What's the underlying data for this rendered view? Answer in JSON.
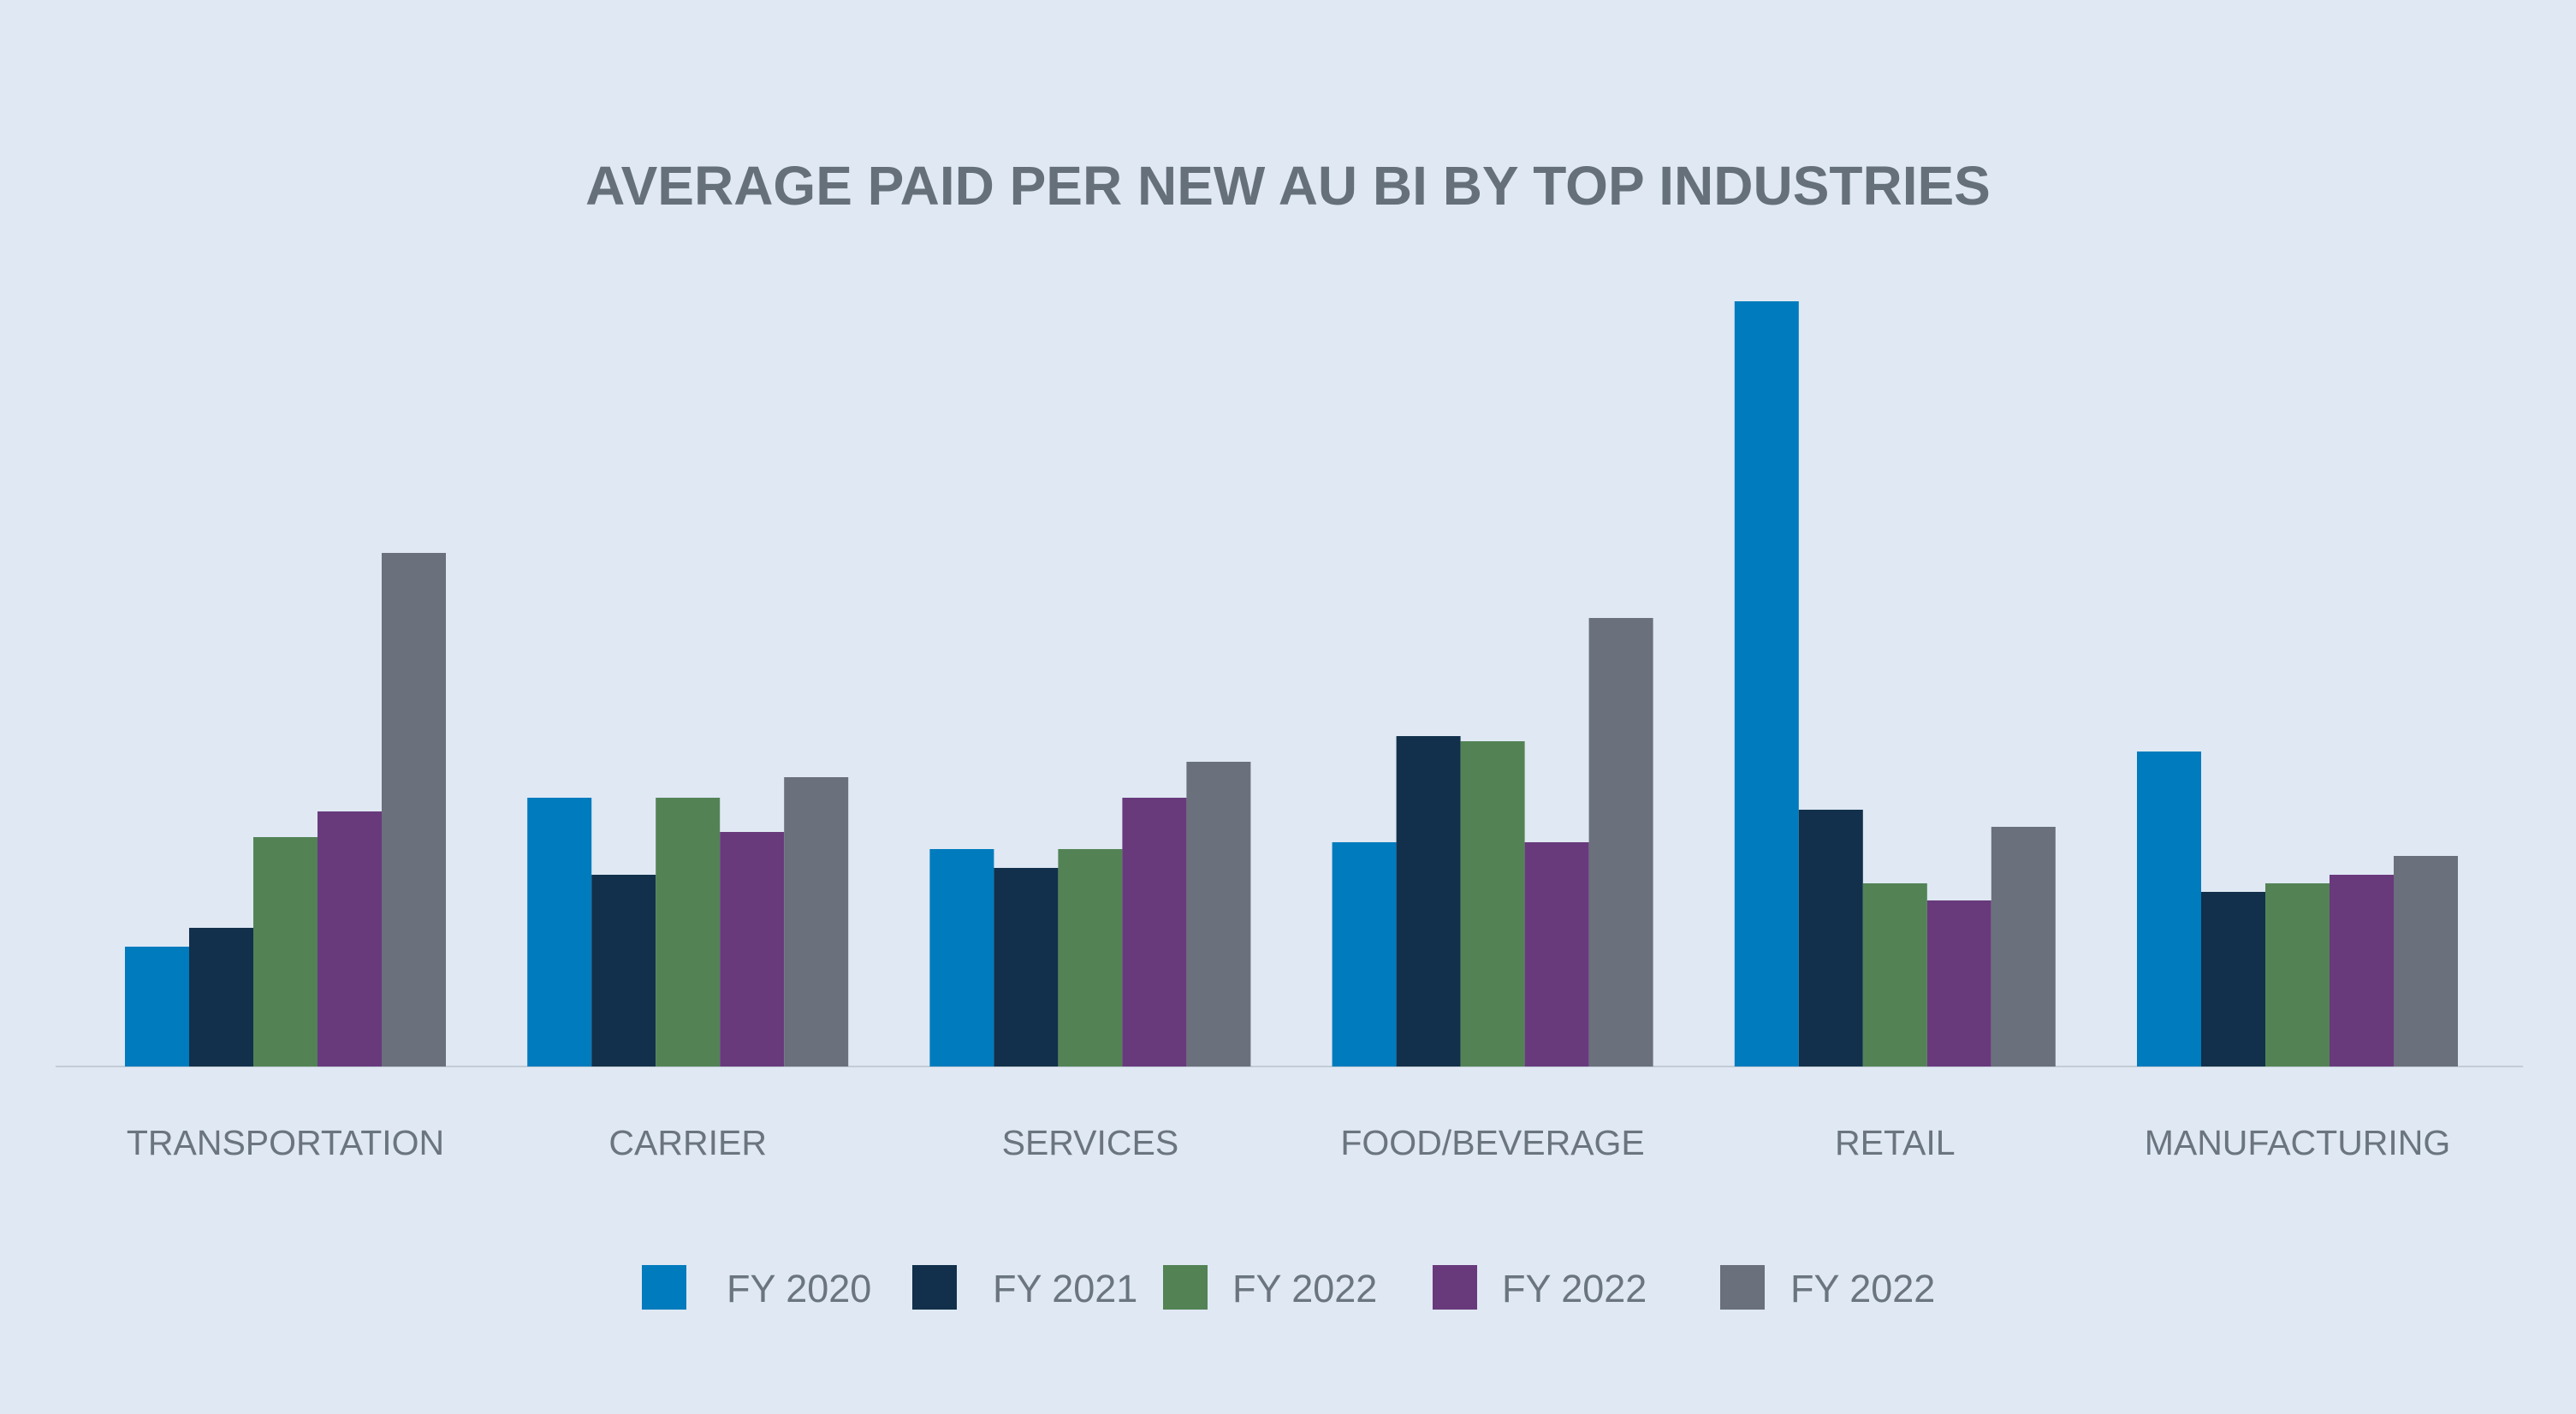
{
  "chart_data": {
    "type": "bar",
    "title": "AVERAGE PAID PER NEW AU BI BY TOP INDUSTRIES",
    "xlabel": "",
    "ylabel": "",
    "categories": [
      "TRANSPORTATION",
      "CARRIER",
      "SERVICES",
      "FOOD/BEVERAGE",
      "RETAIL",
      "MANUFACTURING"
    ],
    "series": [
      {
        "name": "FY 2020",
        "color": "#007bbd",
        "values": [
          140,
          314,
          254,
          262,
          894,
          368
        ]
      },
      {
        "name": "FY 2021",
        "color": "#12304b",
        "values": [
          162,
          224,
          232,
          386,
          300,
          204
        ]
      },
      {
        "name": "FY 2022",
        "color": "#538355",
        "values": [
          268,
          314,
          254,
          380,
          214,
          214
        ]
      },
      {
        "name": "FY 2022",
        "color": "#683a7c",
        "values": [
          298,
          274,
          314,
          262,
          194,
          224
        ]
      },
      {
        "name": "FY 2022",
        "color": "#6a707c",
        "values": [
          600,
          338,
          356,
          524,
          280,
          246
        ]
      }
    ],
    "ylim": [
      0,
      1000
    ],
    "grid": false,
    "legend_position": "bottom"
  }
}
